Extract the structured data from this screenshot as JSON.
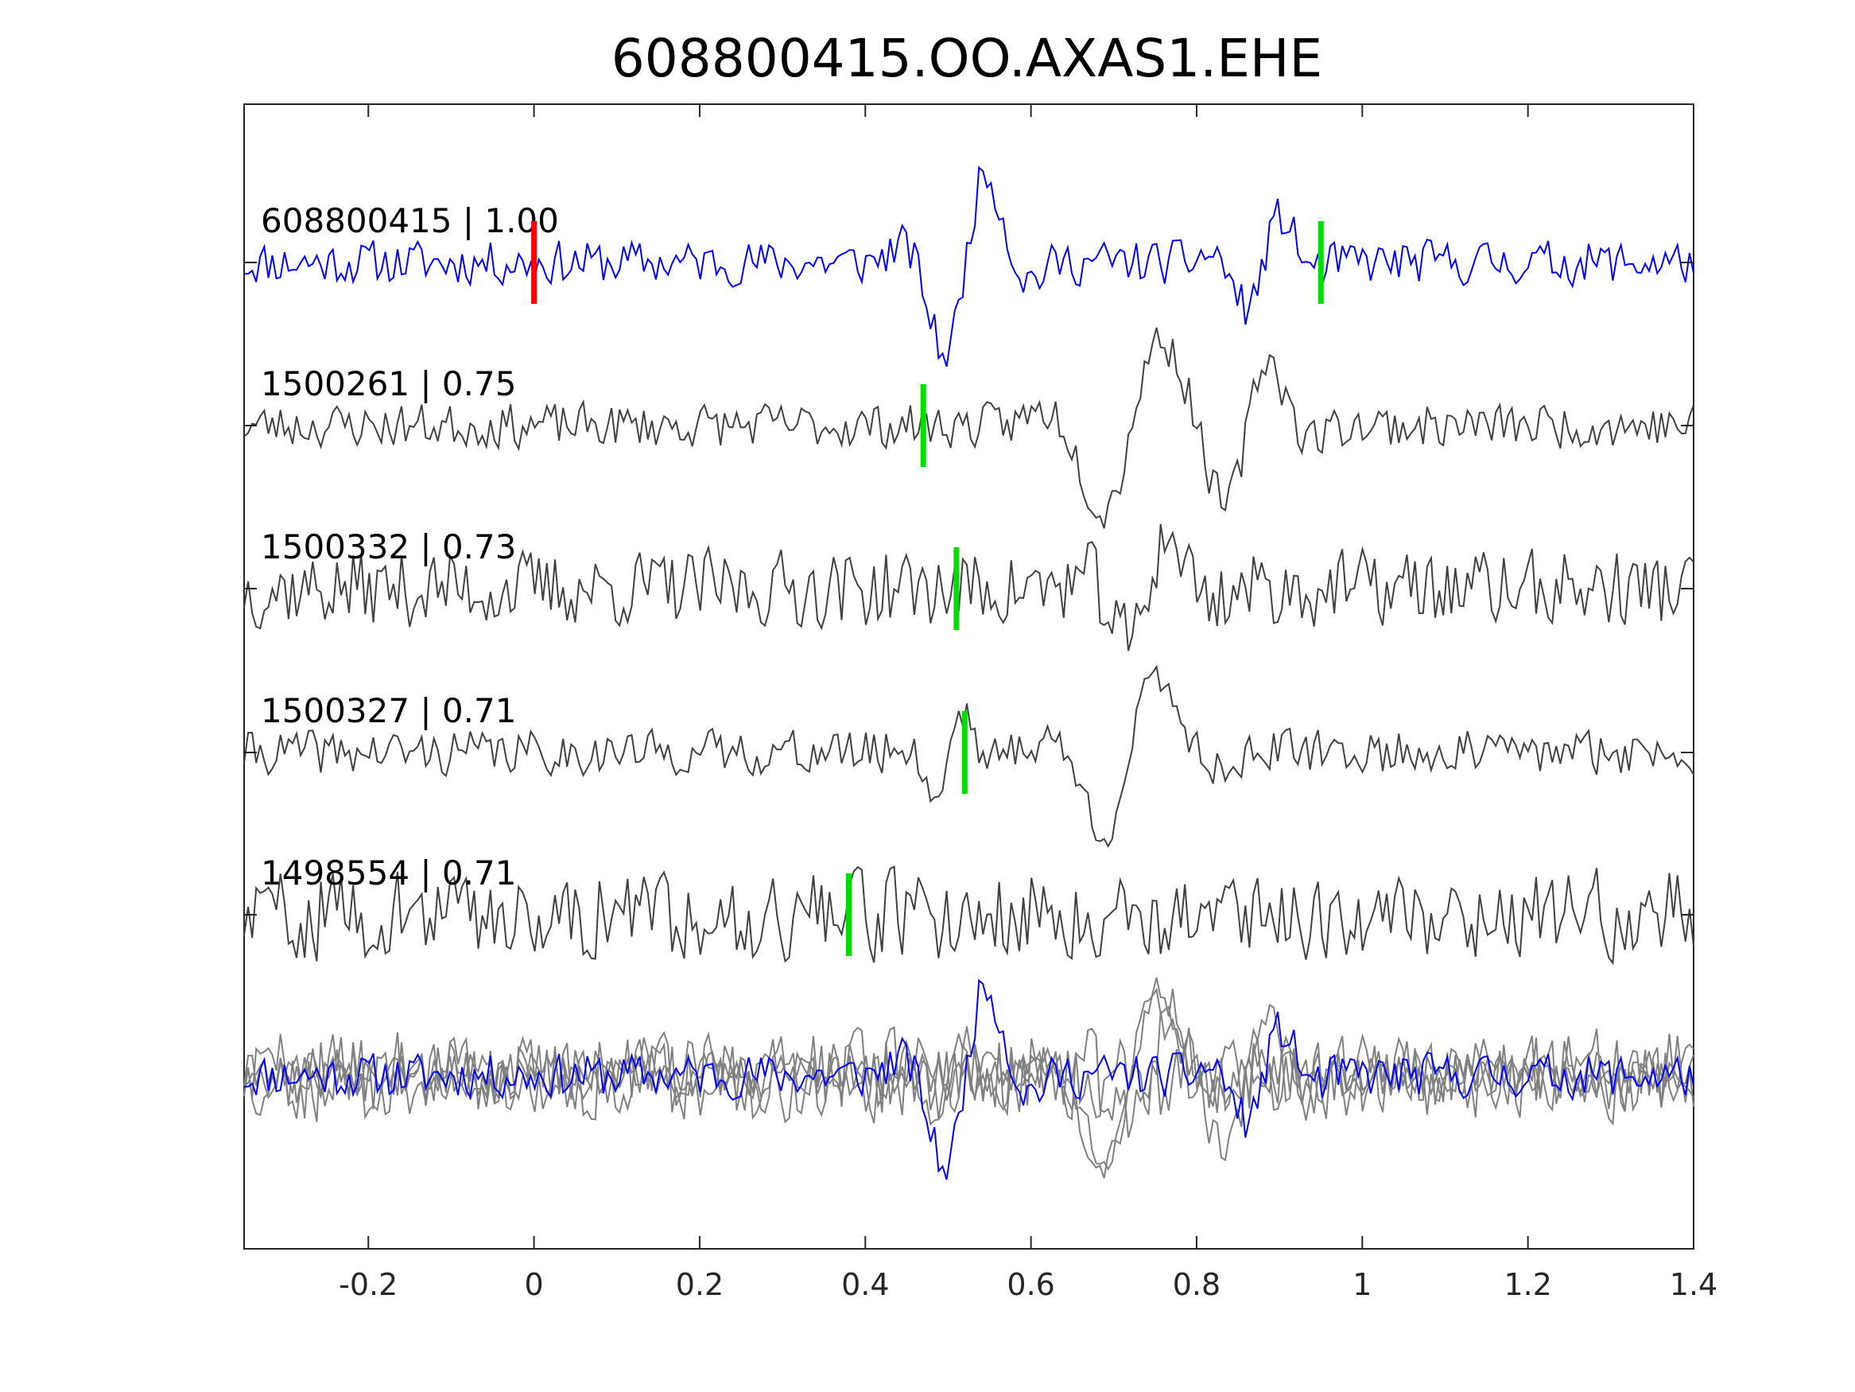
{
  "chart_data": {
    "type": "line",
    "title": "608800415.OO.AXAS1.EHE",
    "xlabel": "",
    "ylabel": "",
    "xlim": [
      -0.35,
      1.4
    ],
    "xticks": [
      "-0.2",
      "0",
      "0.2",
      "0.4",
      "0.6",
      "0.8",
      "1",
      "1.2",
      "1.4"
    ],
    "xtick_values": [
      -0.2,
      0,
      0.2,
      0.4,
      0.6,
      0.8,
      1,
      1.2,
      1.4
    ],
    "grid": false,
    "legend": "none",
    "colors": {
      "master_trace": "#0000ff",
      "match_trace": "#404040",
      "stack_trace": "#808080",
      "master_pick": "#ff0000",
      "match_pick": "#00dd00"
    },
    "series": [
      {
        "label": "608800415 | 1.00",
        "color": "#0000ff",
        "pick_time": 0.0,
        "pick_color": "#ff0000",
        "secondary_pick_time": 0.95
      },
      {
        "label": "1500261 | 0.75",
        "color": "#404040",
        "pick_time": 0.47,
        "pick_color": "#00dd00"
      },
      {
        "label": "1500332 | 0.73",
        "color": "#404040",
        "pick_time": 0.51,
        "pick_color": "#00dd00"
      },
      {
        "label": "1500327 | 0.71",
        "color": "#404040",
        "pick_time": 0.52,
        "pick_color": "#00dd00"
      },
      {
        "label": "1498554 | 0.71",
        "color": "#404040",
        "pick_time": 0.38,
        "pick_color": "#00dd00"
      }
    ]
  }
}
